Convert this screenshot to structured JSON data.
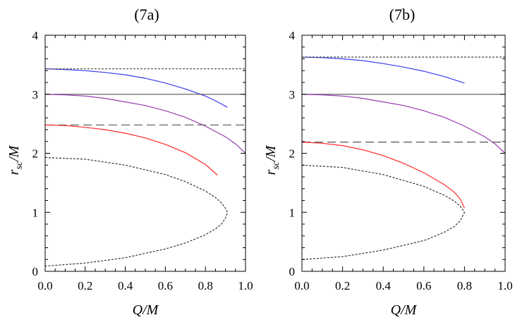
{
  "chart_data": [
    {
      "type": "line",
      "title": "(7a)",
      "xlabel": "Q/M",
      "ylabel": "r_sc/M",
      "ylabel_main": "r",
      "ylabel_sub": "sc",
      "ylabel_tail": "/M",
      "xlabel_q": "Q",
      "xlabel_tail": "/M",
      "xlim": [
        0,
        1
      ],
      "ylim": [
        0,
        4
      ],
      "xticks": [
        "0.0",
        "0.2",
        "0.4",
        "0.6",
        "0.8",
        "1.0"
      ],
      "yticks": [
        "0",
        "1",
        "2",
        "3",
        "4"
      ],
      "grid": false,
      "series": [
        {
          "name": "blue",
          "color": "#3b3bf0",
          "dash": "",
          "x": [
            0,
            0.1,
            0.2,
            0.3,
            0.4,
            0.5,
            0.6,
            0.7,
            0.8,
            0.85,
            0.91
          ],
          "y": [
            3.43,
            3.42,
            3.4,
            3.37,
            3.33,
            3.27,
            3.19,
            3.09,
            2.97,
            2.89,
            2.78
          ]
        },
        {
          "name": "dotted-upper",
          "color": "#444444",
          "dash": "3,2",
          "x": [
            0,
            1
          ],
          "y": [
            3.43,
            3.43
          ]
        },
        {
          "name": "photon-sphere",
          "color": "#555555",
          "dash": "",
          "x": [
            0,
            1
          ],
          "y": [
            3.0,
            3.0
          ]
        },
        {
          "name": "purple",
          "color": "#9b3ab0",
          "dash": "",
          "x": [
            0,
            0.1,
            0.2,
            0.3,
            0.4,
            0.5,
            0.6,
            0.7,
            0.8,
            0.9,
            0.95,
            1.0
          ],
          "y": [
            3.0,
            2.99,
            2.97,
            2.93,
            2.87,
            2.81,
            2.72,
            2.61,
            2.46,
            2.28,
            2.16,
            2.0
          ]
        },
        {
          "name": "dashed-middle",
          "color": "#555555",
          "dash": "12,6",
          "x": [
            0,
            1
          ],
          "y": [
            2.48,
            2.48
          ]
        },
        {
          "name": "red",
          "color": "#ff2a2a",
          "dash": "",
          "x": [
            0,
            0.1,
            0.2,
            0.3,
            0.4,
            0.5,
            0.6,
            0.7,
            0.8,
            0.86
          ],
          "y": [
            2.48,
            2.47,
            2.44,
            2.4,
            2.34,
            2.26,
            2.15,
            2.01,
            1.81,
            1.63
          ]
        },
        {
          "name": "dotted-lower",
          "color": "#333333",
          "dash": "3,2",
          "x": [
            0,
            0.2,
            0.4,
            0.6,
            0.7,
            0.8,
            0.85,
            0.88,
            0.9,
            0.91,
            0.9,
            0.88,
            0.85,
            0.8,
            0.7,
            0.6,
            0.4,
            0.2,
            0
          ],
          "y": [
            1.93,
            1.9,
            1.8,
            1.64,
            1.52,
            1.36,
            1.25,
            1.16,
            1.07,
            1.0,
            0.9,
            0.8,
            0.72,
            0.62,
            0.48,
            0.38,
            0.23,
            0.14,
            0.09
          ]
        }
      ]
    },
    {
      "type": "line",
      "title": "(7b)",
      "xlabel": "Q/M",
      "ylabel": "r_sc/M",
      "ylabel_main": "r",
      "ylabel_sub": "sc",
      "ylabel_tail": "/M",
      "xlabel_q": "Q",
      "xlabel_tail": "/M",
      "xlim": [
        0,
        1
      ],
      "ylim": [
        0,
        4
      ],
      "xticks": [
        "0.0",
        "0.2",
        "0.4",
        "0.6",
        "0.8",
        "1.0"
      ],
      "yticks": [
        "0",
        "1",
        "2",
        "3",
        "4"
      ],
      "grid": false,
      "series": [
        {
          "name": "blue",
          "color": "#3b3bf0",
          "dash": "",
          "x": [
            0,
            0.1,
            0.2,
            0.3,
            0.4,
            0.5,
            0.6,
            0.7,
            0.8
          ],
          "y": [
            3.63,
            3.62,
            3.6,
            3.57,
            3.52,
            3.46,
            3.39,
            3.3,
            3.19
          ]
        },
        {
          "name": "dotted-upper",
          "color": "#444444",
          "dash": "3,2",
          "x": [
            0,
            1
          ],
          "y": [
            3.63,
            3.63
          ]
        },
        {
          "name": "photon-sphere",
          "color": "#555555",
          "dash": "",
          "x": [
            0,
            1
          ],
          "y": [
            3.0,
            3.0
          ]
        },
        {
          "name": "purple",
          "color": "#9b3ab0",
          "dash": "",
          "x": [
            0,
            0.1,
            0.2,
            0.3,
            0.4,
            0.5,
            0.6,
            0.7,
            0.8,
            0.9,
            0.95,
            1.0
          ],
          "y": [
            3.0,
            2.99,
            2.97,
            2.93,
            2.87,
            2.81,
            2.72,
            2.61,
            2.46,
            2.28,
            2.16,
            2.0
          ]
        },
        {
          "name": "dashed-middle",
          "color": "#555555",
          "dash": "12,6",
          "x": [
            0,
            1
          ],
          "y": [
            2.19,
            2.19
          ]
        },
        {
          "name": "red",
          "color": "#ff2a2a",
          "dash": "",
          "x": [
            0,
            0.1,
            0.2,
            0.3,
            0.4,
            0.5,
            0.6,
            0.7,
            0.75,
            0.78,
            0.8
          ],
          "y": [
            2.19,
            2.17,
            2.13,
            2.06,
            1.96,
            1.83,
            1.67,
            1.47,
            1.34,
            1.22,
            1.07
          ]
        },
        {
          "name": "dotted-lower",
          "color": "#333333",
          "dash": "3,2",
          "x": [
            0,
            0.2,
            0.4,
            0.6,
            0.7,
            0.75,
            0.78,
            0.8,
            0.78,
            0.75,
            0.7,
            0.6,
            0.4,
            0.2,
            0
          ],
          "y": [
            1.8,
            1.76,
            1.64,
            1.44,
            1.29,
            1.19,
            1.1,
            1.0,
            0.86,
            0.76,
            0.66,
            0.52,
            0.36,
            0.25,
            0.2
          ]
        }
      ]
    }
  ]
}
